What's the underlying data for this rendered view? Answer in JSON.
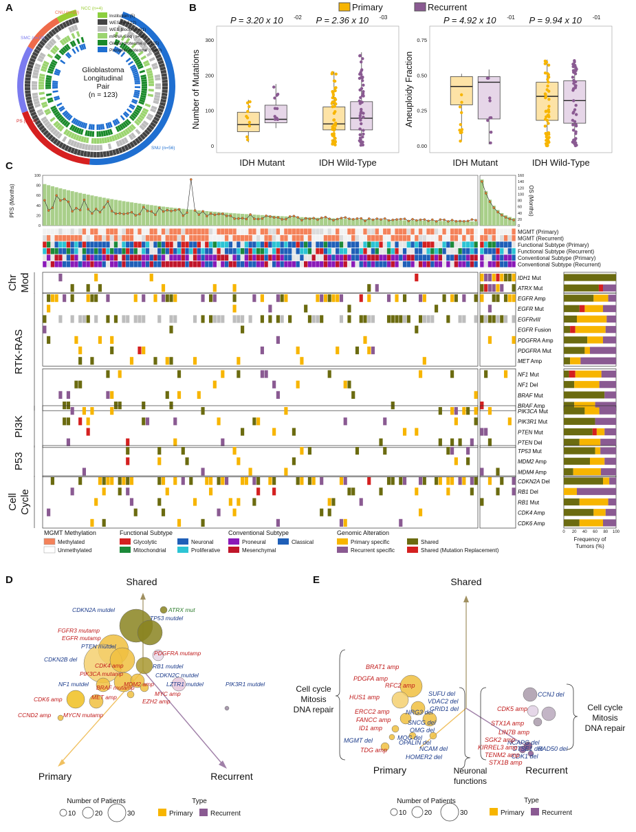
{
  "panel_labels": {
    "a": "A",
    "b": "B",
    "c": "C",
    "d": "D",
    "e": "E"
  },
  "panel_a": {
    "title_lines": [
      "Glioblastoma",
      "Longitudinal",
      "Pair",
      "(n = 123)"
    ],
    "rings": [
      {
        "label": "Institution (5)",
        "color": "#8ccf3f"
      },
      {
        "label": "WES (n=122)",
        "color": "#444444"
      },
      {
        "label": "WES blood (n=91)",
        "color": "#bdbdbd"
      },
      {
        "label": "mRNA-Seq (n=86)",
        "color": "#9bd46f"
      },
      {
        "label": "Global proteome (n=105)",
        "color": "#1a8a2a"
      },
      {
        "label": "Phospho-proteome (n=89)",
        "color": "#1f6fd1"
      }
    ],
    "institutions": [
      {
        "label": "NCC (n=4)",
        "color": "#9acd32"
      },
      {
        "label": "CNU (n=10)",
        "color": "#ef6b4a"
      },
      {
        "label": "SMC (n=19)",
        "color": "#7b7bef"
      },
      {
        "label": "PS (n=34)",
        "color": "#d62020"
      },
      {
        "label": "SNU (n=56)",
        "color": "#1f6fd1"
      }
    ]
  },
  "panel_b": {
    "legend": [
      {
        "label": "Primary",
        "color": "#f7b500"
      },
      {
        "label": "Recurrent",
        "color": "#8a5a92"
      }
    ],
    "chart_data": [
      {
        "type": "box",
        "ylabel": "Number of Mutations",
        "yticks": [
          "0",
          "100",
          "200",
          "300"
        ],
        "ylim": [
          0,
          300
        ],
        "categories": [
          "IDH Mutant",
          "IDH Wild-Type"
        ],
        "pvalues": [
          {
            "mantissa": "P = 3.20 x 10",
            "exp": "-02"
          },
          {
            "mantissa": "P = 2.36 x 10",
            "exp": "-03"
          }
        ],
        "series": [
          {
            "name": "Primary",
            "boxes": [
              {
                "q1": 40,
                "median": 60,
                "q3": 95,
                "min": 10,
                "max": 130
              },
              {
                "q1": 45,
                "median": 62,
                "q3": 110,
                "min": 0,
                "max": 210
              }
            ]
          },
          {
            "name": "Recurrent",
            "boxes": [
              {
                "q1": 65,
                "median": 75,
                "q3": 115,
                "min": 50,
                "max": 175
              },
              {
                "q1": 45,
                "median": 78,
                "q3": 125,
                "min": 0,
                "max": 265
              }
            ]
          }
        ]
      },
      {
        "type": "box",
        "ylabel": "Aneuploidy Fraction",
        "yticks": [
          "0.00",
          "0.25",
          "0.50",
          "0.75"
        ],
        "ylim": [
          0,
          0.75
        ],
        "categories": [
          "IDH Mutant",
          "IDH Wild-Type"
        ],
        "pvalues": [
          {
            "mantissa": "P = 4.92 x 10",
            "exp": "-01"
          },
          {
            "mantissa": "P = 9.94 x 10",
            "exp": "-01"
          }
        ],
        "series": [
          {
            "name": "Primary",
            "boxes": [
              {
                "q1": 0.29,
                "median": 0.42,
                "q3": 0.49,
                "min": 0.03,
                "max": 0.51
              },
              {
                "q1": 0.18,
                "median": 0.35,
                "q3": 0.45,
                "min": 0.0,
                "max": 0.61
              }
            ]
          },
          {
            "name": "Recurrent",
            "boxes": [
              {
                "q1": 0.19,
                "median": 0.45,
                "q3": 0.49,
                "min": 0.01,
                "max": 0.54
              },
              {
                "q1": 0.16,
                "median": 0.32,
                "q3": 0.46,
                "min": 0.0,
                "max": 0.61
              }
            ]
          }
        ]
      }
    ]
  },
  "panel_c": {
    "pfs_label": "PFS (Months)",
    "os_label": "OS (Months)",
    "pfs_ticks": [
      "0",
      "20",
      "40",
      "60",
      "80",
      "100"
    ],
    "os_ticks": [
      "0",
      "20",
      "40",
      "60",
      "80",
      "100",
      "120",
      "140",
      "160"
    ],
    "annotation_rows": [
      "MGMT (Primary)",
      "MGMT (Recurrent)",
      "Functional Subtype (Primary)",
      "Functional Subtype (Recurrent)",
      "Conventional Subtype (Primary)",
      "Conventional Subtype (Recurrent)"
    ],
    "groups": [
      {
        "label_lines": [
          "Chr",
          "Mod"
        ],
        "rows": [
          {
            "gene": "IDH1",
            "suffix": " Mut"
          },
          {
            "gene": "ATRX",
            "suffix": " Mut"
          }
        ]
      },
      {
        "label_lines": [
          "RTK-RAS"
        ],
        "rows": [
          {
            "gene": "EGFR",
            "suffix": " Amp"
          },
          {
            "gene": "EGFR",
            "suffix": " Mut"
          },
          {
            "gene": "EGFRvIII",
            "suffix": ""
          },
          {
            "gene": "EGFR",
            "suffix": " Fusion"
          },
          {
            "gene": "PDGFRA",
            "suffix": " Amp"
          },
          {
            "gene": "PDGFRA",
            "suffix": " Mut"
          },
          {
            "gene": "MET",
            "suffix": " Amp"
          },
          {
            "gene": "NF1",
            "suffix": " Mut"
          },
          {
            "gene": "NF1",
            "suffix": " Del"
          },
          {
            "gene": "BRAF",
            "suffix": " Mut"
          },
          {
            "gene": "BRAF",
            "suffix": " Amp"
          }
        ]
      },
      {
        "label_lines": [
          "PI3K"
        ],
        "rows": [
          {
            "gene": "PIK3CA",
            "suffix": " Mut"
          },
          {
            "gene": "PIK3R1",
            "suffix": " Mut"
          },
          {
            "gene": "PTEN",
            "suffix": " Mut"
          },
          {
            "gene": "PTEN",
            "suffix": " Del"
          }
        ]
      },
      {
        "label_lines": [
          "P53"
        ],
        "rows": [
          {
            "gene": "TP53",
            "suffix": " Mut"
          },
          {
            "gene": "MDM2",
            "suffix": " Amp"
          },
          {
            "gene": "MDM4",
            "suffix": " Amp"
          }
        ]
      },
      {
        "label_lines": [
          "Cell",
          "Cycle"
        ],
        "rows": [
          {
            "gene": "CDKN2A",
            "suffix": " Del"
          },
          {
            "gene": "RB1",
            "suffix": " Del"
          },
          {
            "gene": "RB1",
            "suffix": " Mut"
          },
          {
            "gene": "CDK4",
            "suffix": " Amp"
          },
          {
            "gene": "CDK6",
            "suffix": " Amp"
          }
        ]
      }
    ],
    "freq_axis": {
      "ticks": [
        "0",
        "20",
        "40",
        "60",
        "80",
        "100"
      ],
      "label_lines": [
        "Frequency of",
        "Tumors (%)"
      ]
    },
    "chart_data": {
      "type": "stacked-bar",
      "title": "Frequency of Tumors (%)",
      "categories": [
        "IDH1 Mut",
        "ATRX Mut",
        "EGFR Amp",
        "EGFR Mut",
        "EGFRvIII",
        "EGFR Fusion",
        "PDGFRA Amp",
        "PDGFRA Mut",
        "MET Amp",
        "NF1 Mut",
        "NF1 Del",
        "BRAF Mut",
        "BRAF Amp",
        "PIK3CA Mut",
        "PIK3R1 Mut",
        "PTEN Mut",
        "PTEN Del",
        "TP53 Mut",
        "MDM2 Amp",
        "MDM4 Amp",
        "CDKN2A Del",
        "RB1 Del",
        "RB1 Mut",
        "CDK4 Amp",
        "CDK6 Amp"
      ],
      "series": [
        {
          "name": "Shared",
          "values": [
            100,
            67,
            57,
            30,
            25,
            12,
            45,
            40,
            12,
            10,
            20,
            78,
            20,
            40,
            60,
            55,
            30,
            60,
            50,
            18,
            75,
            0,
            30,
            57,
            30
          ]
        },
        {
          "name": "Shared (Mutation Replacement)",
          "values": [
            0,
            8,
            0,
            10,
            0,
            10,
            0,
            0,
            0,
            12,
            0,
            0,
            0,
            0,
            0,
            8,
            0,
            0,
            0,
            0,
            0,
            0,
            0,
            0,
            0
          ]
        },
        {
          "name": "Primary specific",
          "values": [
            0,
            0,
            28,
            35,
            57,
            58,
            30,
            10,
            20,
            50,
            48,
            0,
            40,
            28,
            0,
            15,
            40,
            10,
            28,
            53,
            12,
            25,
            55,
            23,
            45
          ]
        },
        {
          "name": "Recurrent specific",
          "values": [
            0,
            25,
            15,
            25,
            18,
            20,
            25,
            50,
            68,
            28,
            32,
            22,
            40,
            32,
            40,
            22,
            30,
            30,
            22,
            29,
            13,
            75,
            15,
            20,
            25
          ]
        }
      ]
    },
    "legend": {
      "mgmt": {
        "title": "MGMT Methylation",
        "items": [
          {
            "label": "Methylated",
            "color": "#f4825a"
          },
          {
            "label": "Unmethylated",
            "color": "#ffffff"
          }
        ]
      },
      "functional": {
        "title": "Functional Subtype",
        "items": [
          {
            "label": "Glycolytic",
            "color": "#d42020"
          },
          {
            "label": "Mitochondrial",
            "color": "#1c8a3a"
          },
          {
            "label": "Neuronal",
            "color": "#1f5fb8"
          },
          {
            "label": "Proliferative",
            "color": "#2cc4d4"
          }
        ]
      },
      "conventional": {
        "title": "Conventional Subtype",
        "items": [
          {
            "label": "Proneural",
            "color": "#8a1ab8"
          },
          {
            "label": "Classical",
            "color": "#1f5fb8"
          },
          {
            "label": "Mesenchymal",
            "color": "#c0162a"
          }
        ]
      },
      "genomic": {
        "title": "Genomic Alteration",
        "items": [
          {
            "label": "Primary specific",
            "color": "#f7b500"
          },
          {
            "label": "Shared",
            "color": "#6b6b10"
          },
          {
            "label": "Recurrent specific",
            "color": "#8a5a92"
          },
          {
            "label": "Shared (Mutation Replacement)",
            "color": "#d42020"
          }
        ]
      }
    }
  },
  "panel_d": {
    "axes": {
      "shared": "Shared",
      "primary": "Primary",
      "recurrent": "Recurrent"
    },
    "labels": [
      {
        "text": "CDKN2A mutdel",
        "color": "#1a3a8a"
      },
      {
        "text": "ATRX mut",
        "color": "#2a7a2a"
      },
      {
        "text": "TP53 mutdel",
        "color": "#1a3a8a"
      },
      {
        "text": "FGFR3 mutamp",
        "color": "#c01a1a"
      },
      {
        "text": "EGFR mutamp",
        "color": "#c01a1a"
      },
      {
        "text": "PTEN mutdel",
        "color": "#1a3a8a"
      },
      {
        "text": "PDGFRA mutamp",
        "color": "#c01a1a"
      },
      {
        "text": "CDKN2B del",
        "color": "#1a3a8a"
      },
      {
        "text": "RB1 mutdel",
        "color": "#1a3a8a"
      },
      {
        "text": "CDKN2C mutdel",
        "color": "#1a3a8a"
      },
      {
        "text": "CDK4 amp",
        "color": "#c01a1a"
      },
      {
        "text": "PIK3CA mutamp",
        "color": "#c01a1a"
      },
      {
        "text": "MDM2 amp",
        "color": "#c01a1a"
      },
      {
        "text": "LZTR1 mutdel",
        "color": "#1a3a8a"
      },
      {
        "text": "NF1 mutdel",
        "color": "#1a3a8a"
      },
      {
        "text": "BRAF mutamp",
        "color": "#c01a1a"
      },
      {
        "text": "MYC amp",
        "color": "#c01a1a"
      },
      {
        "text": "PIK3R1 mutdel",
        "color": "#1a3a8a"
      },
      {
        "text": "MET amp",
        "color": "#c01a1a"
      },
      {
        "text": "EZH2 amp",
        "color": "#c01a1a"
      },
      {
        "text": "CDK6 amp",
        "color": "#c01a1a"
      },
      {
        "text": "CCND2 amp",
        "color": "#c01a1a"
      },
      {
        "text": "MYCN mutamp",
        "color": "#c01a1a"
      }
    ],
    "size_legend": {
      "title": "Number of Patients",
      "values": [
        "10",
        "20",
        "30"
      ]
    },
    "type_legend": {
      "title": "Type",
      "items": [
        {
          "label": "Primary",
          "color": "#f7b500"
        },
        {
          "label": "Recurrent",
          "color": "#8a5a92"
        }
      ]
    }
  },
  "panel_e": {
    "axes": {
      "shared": "Shared",
      "primary": "Primary",
      "recurrent": "Recurrent"
    },
    "left_group": [
      "Cell cycle",
      "Mitosis",
      "DNA repair"
    ],
    "right_group": [
      "Cell cycle",
      "Mitosis",
      "DNA repair"
    ],
    "neuronal_group": [
      "Neuronal",
      "functions"
    ],
    "labels": [
      {
        "text": "BRAT1 amp",
        "color": "#c01a1a"
      },
      {
        "text": "PDGFA amp",
        "color": "#c01a1a"
      },
      {
        "text": "RFC2 amp",
        "color": "#c01a1a"
      },
      {
        "text": "SUFU del",
        "color": "#1a3a8a"
      },
      {
        "text": "VDAC2 del",
        "color": "#1a3a8a"
      },
      {
        "text": "HUS1 amp",
        "color": "#c01a1a"
      },
      {
        "text": "GRID1 del",
        "color": "#1a3a8a"
      },
      {
        "text": "NRG3 del",
        "color": "#1a3a8a"
      },
      {
        "text": "ERCC2 amp",
        "color": "#c01a1a"
      },
      {
        "text": "SNCG del",
        "color": "#1a3a8a"
      },
      {
        "text": "FANCC amp",
        "color": "#c01a1a"
      },
      {
        "text": "OMG del",
        "color": "#1a3a8a"
      },
      {
        "text": "ID1 amp",
        "color": "#c01a1a"
      },
      {
        "text": "MOG del",
        "color": "#1a3a8a"
      },
      {
        "text": "OPALIN del",
        "color": "#1a3a8a"
      },
      {
        "text": "MGMT del",
        "color": "#1a3a8a"
      },
      {
        "text": "NCAM del",
        "color": "#1a3a8a"
      },
      {
        "text": "TDG amp",
        "color": "#c01a1a"
      },
      {
        "text": "HOMER2 del",
        "color": "#1a3a8a"
      },
      {
        "text": "CCNJ del",
        "color": "#1a3a8a"
      },
      {
        "text": "CDK5 amp",
        "color": "#c01a1a"
      },
      {
        "text": "STX1A amp",
        "color": "#c01a1a"
      },
      {
        "text": "LIN7B amp",
        "color": "#c01a1a"
      },
      {
        "text": "NCAPG del",
        "color": "#1a3a8a"
      },
      {
        "text": "GTSE1 del",
        "color": "#1a3a8a"
      },
      {
        "text": "CDK1 del",
        "color": "#1a3a8a"
      },
      {
        "text": "SGK2 amp",
        "color": "#c01a1a"
      },
      {
        "text": "KIRREL3 amp",
        "color": "#c01a1a"
      },
      {
        "text": "RAD50 del",
        "color": "#1a3a8a"
      },
      {
        "text": "TENM2 amp",
        "color": "#c01a1a"
      },
      {
        "text": "STX1B amp",
        "color": "#c01a1a"
      }
    ],
    "size_legend": {
      "title": "Number of Patients",
      "values": [
        "10",
        "20",
        "30"
      ]
    },
    "type_legend": {
      "title": "Type",
      "items": [
        {
          "label": "Primary",
          "color": "#f7b500"
        },
        {
          "label": "Recurrent",
          "color": "#8a5a92"
        }
      ]
    }
  }
}
